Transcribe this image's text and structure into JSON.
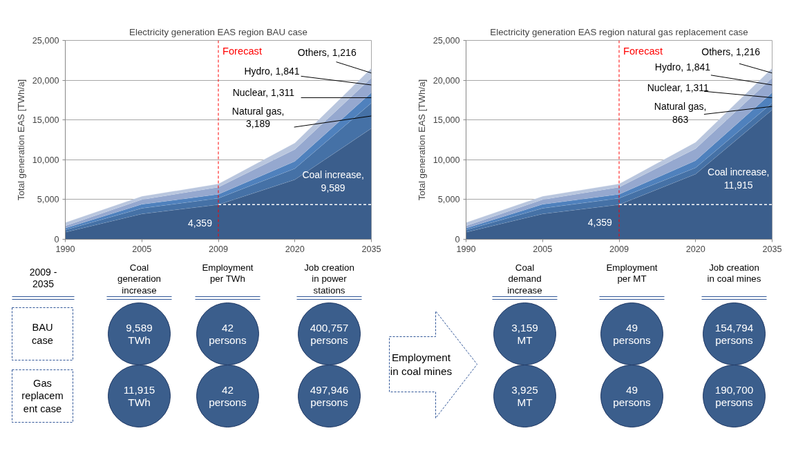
{
  "chart_data": [
    {
      "type": "area",
      "stacked": true,
      "title": "Electricity generation EAS region BAU case",
      "ylabel": "Total generation EAS [TWh/a]",
      "categories": [
        "1990",
        "2005",
        "2009",
        "2020",
        "2035"
      ],
      "ylim": [
        0,
        25000
      ],
      "yticks": [
        0,
        {
          "value": 5000,
          "label": "5,000"
        },
        {
          "value": 10000,
          "label": "10,000"
        },
        {
          "value": 15000,
          "label": "15,000"
        },
        {
          "value": 20000,
          "label": "20,000"
        },
        {
          "value": 25000,
          "label": "25,000"
        }
      ],
      "grid": "y",
      "series": [
        {
          "color": "#3b5e8c",
          "values": [
            900,
            3200,
            4359,
            7500,
            13948
          ]
        },
        {
          "color": "#4571a6",
          "values": [
            300,
            700,
            800,
            1400,
            3189
          ]
        },
        {
          "color": "#4f81bd",
          "values": [
            200,
            500,
            500,
            900,
            1311
          ]
        },
        {
          "color": "#95a8cf",
          "values": [
            300,
            600,
            900,
            1500,
            1841
          ]
        },
        {
          "color": "#b9c6de",
          "values": [
            400,
            400,
            400,
            800,
            1216
          ]
        },
        {
          "type": "line",
          "color": "#ffffff",
          "line_style": "dashed",
          "values": [
            null,
            null,
            4359,
            4359,
            4359
          ]
        }
      ],
      "ref_lines": [
        {
          "axis": "x",
          "value": "2009",
          "label": "Forecast",
          "color": "#ff0000",
          "line_style": "dashed"
        }
      ],
      "annotations": [
        {
          "text": "Others, 1,216",
          "x": "2035",
          "y": 20900
        },
        {
          "text": "Hydro, 1,841",
          "x": "2035",
          "y": 19400
        },
        {
          "text": "Nuclear, 1,311",
          "x": "2035",
          "y": 17800
        },
        {
          "text": "Natural gas,\n3,189",
          "x": "2035",
          "y": 15500
        },
        "Coal increase,\n9,589",
        "4,359"
      ]
    },
    {
      "type": "area",
      "stacked": true,
      "title": "Electricity generation EAS region natural gas replacement case",
      "ylabel": "Total generation EAS [TWh/a]",
      "categories": [
        "1990",
        "2005",
        "2009",
        "2020",
        "2035"
      ],
      "ylim": [
        0,
        25000
      ],
      "yticks": [
        0,
        {
          "value": 5000,
          "label": "5,000"
        },
        {
          "value": 10000,
          "label": "10,000"
        },
        {
          "value": 15000,
          "label": "15,000"
        },
        {
          "value": 20000,
          "label": "20,000"
        },
        {
          "value": 25000,
          "label": "25,000"
        }
      ],
      "grid": "y",
      "series": [
        {
          "color": "#3b5e8c",
          "values": [
            900,
            3200,
            4359,
            8200,
            16274
          ]
        },
        {
          "color": "#4571a6",
          "values": [
            300,
            700,
            800,
            800,
            863
          ]
        },
        {
          "color": "#4f81bd",
          "values": [
            200,
            500,
            500,
            900,
            1311
          ]
        },
        {
          "color": "#95a8cf",
          "values": [
            300,
            600,
            900,
            1500,
            1841
          ]
        },
        {
          "color": "#b9c6de",
          "values": [
            400,
            400,
            400,
            800,
            1216
          ]
        },
        {
          "type": "line",
          "color": "#ffffff",
          "line_style": "dashed",
          "values": [
            null,
            null,
            4359,
            4359,
            4359
          ]
        }
      ],
      "ref_lines": [
        {
          "axis": "x",
          "value": "2009",
          "label": "Forecast",
          "color": "#ff0000",
          "line_style": "dashed"
        }
      ],
      "annotations": [
        {
          "text": "Others, 1,216",
          "x": "2035",
          "y": 20900
        },
        {
          "text": "Hydro, 1,841",
          "x": "2035",
          "y": 19400
        },
        {
          "text": "Nuclear, 1,311",
          "x": "2035",
          "y": 17800
        },
        {
          "text": "Natural gas,\n863",
          "x": "2035",
          "y": 16700
        },
        "Coal increase,\n11,915",
        "4,359"
      ]
    },
    {
      "type": "other",
      "color": "#3b5e8c",
      "categories": [
        "Coal\ngeneration\nincrease",
        "Employment\nper TWh",
        "Job creation\nin power\nstations",
        "Coal\ndemand\nincrease",
        "Employment\nper MT",
        "Job creation\nin coal mines"
      ],
      "y_categories": [
        "BAU\ncase",
        "Gas\nreplacem\nent case"
      ],
      "cell_labels": [
        [
          "9,589\nTWh",
          "42\npersons",
          "400,757\npersons",
          "3,159\nMT",
          "49\npersons",
          "154,794\npersons"
        ],
        [
          "11,915\nTWh",
          "42\npersons",
          "497,946\npersons",
          "3,925\nMT",
          "49\npersons",
          "190,700\npersons"
        ]
      ],
      "annotations": [
        "2009 -\n2035",
        "Employment\nin coal mines"
      ]
    }
  ]
}
